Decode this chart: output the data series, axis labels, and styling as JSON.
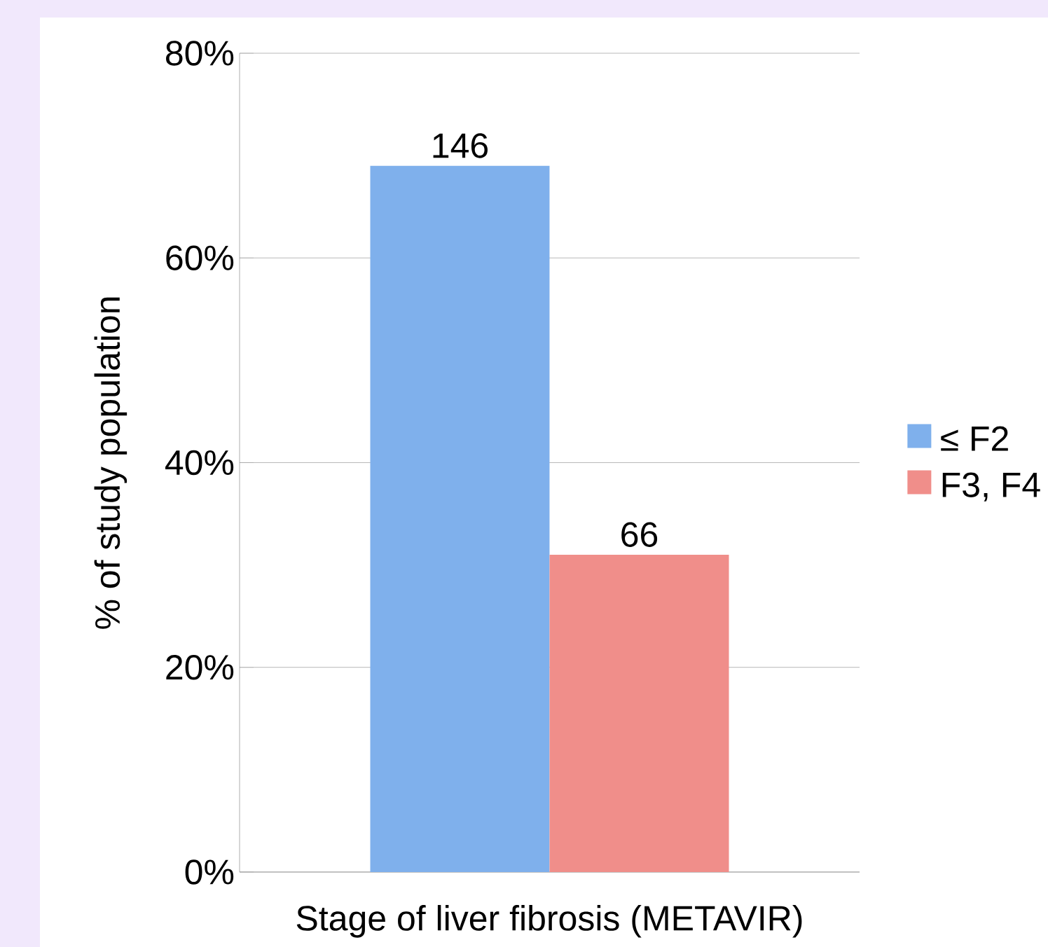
{
  "chart_data": {
    "type": "bar",
    "xlabel": "Stage of liver fibrosis (METAVIR)",
    "ylabel": "% of study population",
    "categories": [
      null
    ],
    "series": [
      {
        "name": "≤ F2",
        "color": "#7fb0ec",
        "values": [
          69.0
        ]
      },
      {
        "name": "F3, F4",
        "color": "#f08e8a",
        "values": [
          31.0
        ]
      }
    ],
    "annotations": [
      {
        "text": "146",
        "y": 69.0
      },
      {
        "text": "66",
        "y": 31.0
      }
    ],
    "ylim": [
      0,
      80
    ],
    "yticks": [
      {
        "value": 0,
        "label": "0%"
      },
      {
        "value": 20,
        "label": "20%"
      },
      {
        "value": 40,
        "label": "40%"
      },
      {
        "value": 60,
        "label": "60%"
      },
      {
        "value": 80,
        "label": "80%"
      }
    ],
    "grid": "y",
    "legend": "right"
  }
}
